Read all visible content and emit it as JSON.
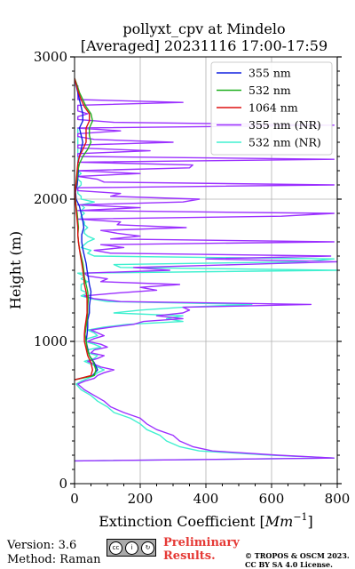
{
  "header": {
    "title_line1": "pollyxt_cpv at Mindelo",
    "title_line2": "[Averaged] 20231116 17:00-17:59"
  },
  "footer": {
    "version": "Version: 3.6",
    "method": "Method: Raman",
    "preliminary_line1": "Preliminary",
    "preliminary_line2": "Results.",
    "copyright_line1": "© TROPOS & OSCM 2023.",
    "copyright_line2": "CC BY SA 4.0 License.",
    "license_icons": [
      "cc-icon",
      "by-icon",
      "sa-icon"
    ]
  },
  "chart_data": {
    "type": "line",
    "title": "pollyxt_cpv at Mindelo [Averaged] 20231116 17:00-17:59",
    "xlabel": "Extinction Coefficient",
    "xlabel_unit": "Mm^-1",
    "ylabel": "Height (m)",
    "xlim": [
      0,
      800
    ],
    "ylim": [
      0,
      3000
    ],
    "xticks": [
      0,
      200,
      400,
      600,
      800
    ],
    "yticks": [
      0,
      1000,
      2000,
      3000
    ],
    "grid": true,
    "legend_position": "top-right",
    "series": [
      {
        "name": "355 nm",
        "color": "#1020e0",
        "y": [
          730,
          760,
          800,
          850,
          900,
          950,
          1000,
          1050,
          1100,
          1150,
          1200,
          1250,
          1300,
          1350,
          1400,
          1450,
          1500,
          1550,
          1600,
          1650,
          1700,
          1750,
          1800,
          1850,
          1900,
          1950,
          2000,
          2050,
          2100,
          2150,
          2200,
          2250,
          2300,
          2350,
          2400,
          2450,
          2500,
          2550,
          2600,
          2650,
          2700,
          2750,
          2800,
          2850
        ],
        "x": [
          0,
          55,
          70,
          60,
          45,
          40,
          35,
          38,
          40,
          40,
          45,
          45,
          48,
          50,
          45,
          42,
          38,
          35,
          30,
          25,
          22,
          22,
          28,
          25,
          20,
          15,
          5,
          3,
          8,
          10,
          12,
          10,
          15,
          20,
          25,
          20,
          15,
          25,
          25,
          20,
          15,
          10,
          5,
          0
        ]
      },
      {
        "name": "532 nm",
        "color": "#20b020",
        "y": [
          730,
          760,
          800,
          850,
          900,
          950,
          1000,
          1050,
          1100,
          1150,
          1200,
          1250,
          1300,
          1350,
          1400,
          1450,
          1500,
          1550,
          1600,
          1650,
          1700,
          1750,
          1800,
          1850,
          1900,
          1950,
          2000,
          2050,
          2100,
          2150,
          2200,
          2250,
          2300,
          2350,
          2400,
          2450,
          2500,
          2550,
          2600,
          2650,
          2700,
          2750,
          2800,
          2850
        ],
        "x": [
          0,
          60,
          65,
          58,
          45,
          38,
          35,
          32,
          35,
          38,
          40,
          40,
          42,
          40,
          35,
          30,
          28,
          25,
          20,
          15,
          12,
          10,
          12,
          10,
          8,
          5,
          3,
          2,
          5,
          8,
          10,
          15,
          25,
          40,
          50,
          45,
          45,
          55,
          50,
          35,
          25,
          15,
          8,
          0
        ]
      },
      {
        "name": "1064 nm",
        "color": "#dd1010",
        "y": [
          730,
          760,
          800,
          850,
          900,
          950,
          1000,
          1050,
          1100,
          1150,
          1200,
          1250,
          1300,
          1350,
          1400,
          1450,
          1500,
          1550,
          1600,
          1650,
          1700,
          1750,
          1800,
          1850,
          1900,
          1950,
          2000,
          2050,
          2100,
          2150,
          2200,
          2250,
          2300,
          2350,
          2400,
          2450,
          2500,
          2550,
          2600,
          2650,
          2700,
          2750,
          2800,
          2850
        ],
        "x": [
          0,
          50,
          55,
          50,
          40,
          35,
          30,
          30,
          32,
          35,
          38,
          38,
          38,
          35,
          30,
          28,
          25,
          22,
          18,
          15,
          12,
          10,
          10,
          8,
          6,
          4,
          2,
          2,
          4,
          6,
          8,
          10,
          15,
          25,
          35,
          35,
          35,
          45,
          45,
          30,
          20,
          12,
          6,
          0
        ]
      },
      {
        "name": "355 nm (NR)",
        "color": "#9b30ff",
        "y": [
          160,
          180,
          200,
          230,
          260,
          300,
          340,
          380,
          420,
          460,
          500,
          540,
          580,
          620,
          660,
          700,
          720,
          740,
          760,
          780,
          800,
          820,
          840,
          860,
          880,
          900,
          920,
          940,
          960,
          980,
          1000,
          1020,
          1040,
          1060,
          1080,
          1100,
          1120,
          1140,
          1160,
          1180,
          1200,
          1220,
          1240,
          1260,
          1280,
          1300,
          1320,
          1340,
          1360,
          1380,
          1400,
          1420,
          1440,
          1460,
          1480,
          1500,
          1520,
          1540,
          1560,
          1580,
          1600,
          1620,
          1640,
          1660,
          1680,
          1700,
          1720,
          1740,
          1760,
          1780,
          1800,
          1820,
          1840,
          1860,
          1880,
          1900,
          1920,
          1940,
          1960,
          1980,
          2000,
          2020,
          2040,
          2060,
          2080,
          2100,
          2120,
          2140,
          2160,
          2180,
          2200,
          2220,
          2240,
          2260,
          2280,
          2300,
          2320,
          2340,
          2360,
          2380,
          2400,
          2420,
          2440,
          2460,
          2480,
          2500,
          2520,
          2540,
          2560,
          2580,
          2600,
          2620,
          2640,
          2660,
          2680,
          2700,
          2720,
          2740,
          2760,
          2780,
          2800
        ],
        "x": [
          0,
          790,
          620,
          420,
          360,
          320,
          300,
          250,
          220,
          200,
          150,
          110,
          90,
          60,
          30,
          10,
          30,
          60,
          70,
          90,
          120,
          80,
          60,
          40,
          70,
          90,
          50,
          60,
          100,
          80,
          40,
          60,
          90,
          70,
          50,
          110,
          180,
          210,
          330,
          250,
          330,
          350,
          330,
          720,
          140,
          60,
          30,
          130,
          250,
          200,
          320,
          80,
          100,
          40,
          30,
          290,
          180,
          500,
          800,
          400,
          780,
          110,
          60,
          150,
          80,
          790,
          110,
          200,
          130,
          80,
          340,
          130,
          140,
          10,
          630,
          790,
          10,
          200,
          10,
          330,
          380,
          110,
          140,
          10,
          10,
          790,
          90,
          70,
          10,
          200,
          10,
          350,
          360,
          10,
          790,
          10,
          10,
          230,
          10,
          10,
          300,
          60,
          10,
          10,
          140,
          10,
          790,
          120,
          10,
          10,
          40,
          10,
          10,
          10,
          330,
          10,
          10,
          10,
          10,
          10,
          10
        ]
      },
      {
        "name": "532 nm (NR)",
        "color": "#40f0d0",
        "y": [
          160,
          180,
          200,
          230,
          260,
          300,
          340,
          380,
          420,
          460,
          500,
          540,
          580,
          620,
          660,
          700,
          720,
          740,
          760,
          780,
          800,
          820,
          840,
          860,
          880,
          900,
          920,
          940,
          960,
          980,
          1000,
          1020,
          1040,
          1060,
          1080,
          1100,
          1120,
          1140,
          1160,
          1180,
          1200,
          1220,
          1240,
          1260,
          1280,
          1300,
          1320,
          1340,
          1360,
          1380,
          1400,
          1420,
          1440,
          1460,
          1480,
          1500,
          1520,
          1540,
          1560,
          1580,
          1600,
          1620,
          1640,
          1660,
          1680,
          1700,
          1720,
          1740,
          1760,
          1780,
          1800,
          1820,
          1840,
          1860,
          1880,
          1900,
          1920,
          1940,
          1960,
          1980,
          2000,
          2020,
          2040,
          2060,
          2080,
          2100,
          2120,
          2140,
          2160,
          2180,
          2200,
          2220,
          2240,
          2260,
          2280,
          2300,
          2320,
          2340,
          2360,
          2380,
          2400,
          2420,
          2440,
          2460,
          2480,
          2500
        ],
        "x": [
          0,
          790,
          600,
          380,
          320,
          280,
          260,
          220,
          200,
          170,
          120,
          100,
          70,
          50,
          20,
          5,
          20,
          40,
          60,
          70,
          90,
          70,
          50,
          30,
          60,
          70,
          40,
          40,
          80,
          60,
          30,
          40,
          70,
          60,
          40,
          90,
          160,
          330,
          280,
          330,
          120,
          200,
          330,
          540,
          100,
          50,
          20,
          40,
          20,
          20,
          20,
          40,
          20,
          30,
          10,
          800,
          140,
          120,
          700,
          790,
          60,
          40,
          50,
          20,
          30,
          40,
          60,
          40,
          30,
          30,
          40,
          30,
          30,
          20,
          20,
          30,
          20,
          30,
          20,
          60,
          20,
          20,
          10,
          10,
          10,
          20,
          20,
          10,
          10,
          20,
          10,
          10,
          10,
          10,
          10,
          10,
          10,
          10,
          10,
          10,
          10,
          10,
          10,
          10,
          10,
          10
        ]
      }
    ]
  }
}
